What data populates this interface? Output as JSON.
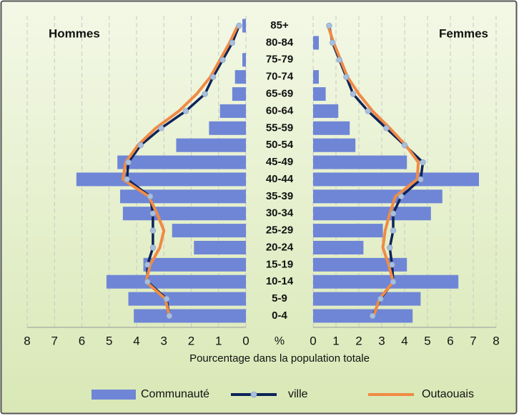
{
  "chart_data": {
    "type": "pyramid",
    "center_label": "%",
    "xlabel": "Pourcentage  dans la population totale",
    "grid": true,
    "categories": [
      "0-4",
      "5-9",
      "10-14",
      "15-19",
      "20-24",
      "25-29",
      "30-34",
      "35-39",
      "40-44",
      "45-49",
      "50-54",
      "55-59",
      "60-64",
      "65-69",
      "70-74",
      "75-79",
      "80-84",
      "85+"
    ],
    "legend": [
      {
        "name": "Communauté",
        "color": "#6f86d6",
        "kind": "bar"
      },
      {
        "name": "ville",
        "color": "#0d2459",
        "marker_color": "#a9bfdc",
        "kind": "line"
      },
      {
        "name": "Outaouais",
        "color": "#f08a45",
        "kind": "line"
      }
    ],
    "panels": [
      {
        "title": "Hommes",
        "xlim": [
          8,
          0
        ],
        "xticks": [
          8,
          7,
          6,
          5,
          4,
          3,
          2,
          1,
          0
        ],
        "series": [
          {
            "values": [
              4.1,
              4.3,
              5.1,
              3.75,
              1.9,
              2.7,
              4.5,
              4.6,
              6.2,
              4.7,
              2.55,
              1.35,
              0.95,
              0.5,
              0.4,
              0.13,
              0,
              0.13
            ]
          },
          {
            "values": [
              2.8,
              2.9,
              3.6,
              3.6,
              3.4,
              3.4,
              3.4,
              3.5,
              4.35,
              4.3,
              3.85,
              3.1,
              2.2,
              1.5,
              1.2,
              0.85,
              0.5,
              0.25
            ]
          },
          {
            "values": [
              2.8,
              2.95,
              3.65,
              3.5,
              3.15,
              3.0,
              3.25,
              3.55,
              4.5,
              4.4,
              3.95,
              3.3,
              2.45,
              1.8,
              1.3,
              0.95,
              0.6,
              0.3
            ]
          }
        ]
      },
      {
        "title": "Femmes",
        "xlim": [
          0,
          8
        ],
        "xticks": [
          0,
          1,
          2,
          3,
          4,
          5,
          6,
          7,
          8
        ],
        "series": [
          {
            "values": [
              4.35,
              4.7,
              6.35,
              4.1,
              2.2,
              3.05,
              5.15,
              5.65,
              7.25,
              4.1,
              1.85,
              1.6,
              1.1,
              0.55,
              0.25,
              0,
              0.25,
              0
            ]
          },
          {
            "values": [
              2.6,
              2.95,
              3.5,
              3.45,
              3.35,
              3.5,
              3.5,
              3.85,
              4.7,
              4.8,
              4.0,
              3.2,
              2.4,
              1.75,
              1.45,
              1.15,
              0.85,
              0.7
            ]
          },
          {
            "values": [
              2.65,
              2.9,
              3.5,
              3.3,
              3.05,
              3.15,
              3.35,
              3.6,
              4.55,
              4.6,
              4.05,
              3.35,
              2.6,
              2.0,
              1.5,
              1.2,
              0.9,
              0.65
            ]
          }
        ]
      }
    ]
  }
}
